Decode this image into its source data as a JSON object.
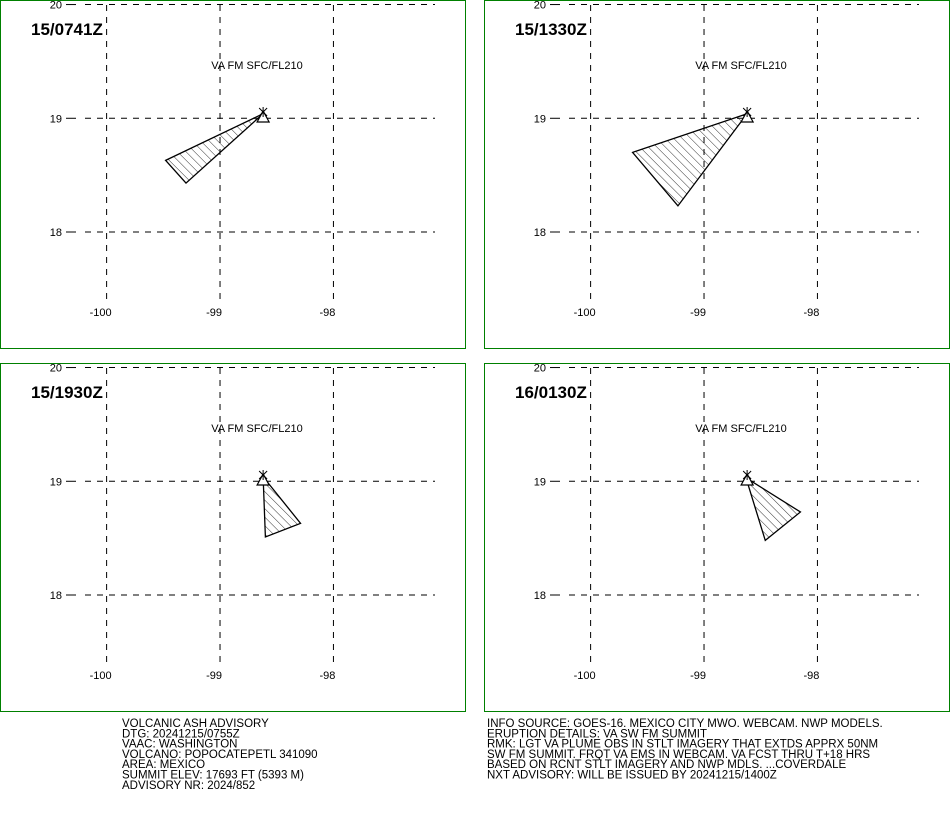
{
  "panels": [
    {
      "time": "15/0741Z",
      "label": "VA FM SFC/FL210",
      "xlim": [
        -100.94,
        -96.84
      ],
      "ylim": [
        16.98,
        20.04
      ],
      "xticks": [
        -100,
        -99,
        -98
      ],
      "yticks": [
        20,
        19,
        18
      ],
      "vent": [
        -98.62,
        19.02
      ],
      "plume": {
        "lon": [
          -98.62,
          -99.48,
          -99.3
        ],
        "lat": [
          19.04,
          18.63,
          18.43
        ]
      }
    },
    {
      "time": "15/1330Z",
      "label": "VA FM SFC/FL210",
      "xlim": [
        -100.94,
        -96.84
      ],
      "ylim": [
        16.98,
        20.04
      ],
      "xticks": [
        -100,
        -99,
        -98
      ],
      "yticks": [
        20,
        19,
        18
      ],
      "vent": [
        -98.62,
        19.02
      ],
      "plume": {
        "lon": [
          -98.62,
          -99.63,
          -99.23
        ],
        "lat": [
          19.04,
          18.7,
          18.23
        ]
      }
    },
    {
      "time": "15/1930Z",
      "label": "VA FM SFC/FL210",
      "xlim": [
        -100.94,
        -96.84
      ],
      "ylim": [
        16.98,
        20.04
      ],
      "xticks": [
        -100,
        -99,
        -98
      ],
      "yticks": [
        20,
        19,
        18
      ],
      "vent": [
        -98.62,
        19.02
      ],
      "plume": {
        "lon": [
          -98.62,
          -98.29,
          -98.6
        ],
        "lat": [
          19.04,
          18.63,
          18.51
        ]
      }
    },
    {
      "time": "16/0130Z",
      "label": "VA FM SFC/FL210",
      "xlim": [
        -100.94,
        -96.84
      ],
      "ylim": [
        16.98,
        20.04
      ],
      "xticks": [
        -100,
        -99,
        -98
      ],
      "yticks": [
        20,
        19,
        18
      ],
      "vent": [
        -98.62,
        19.02
      ],
      "plume": {
        "lon": [
          -98.63,
          -98.15,
          -98.46
        ],
        "lat": [
          19.03,
          18.73,
          18.48
        ]
      }
    }
  ],
  "text_left": [
    "VOLCANIC ASH ADVISORY",
    "DTG: 20241215/0755Z",
    "VAAC: WASHINGTON",
    "VOLCANO: POPOCATEPETL 341090",
    "AREA: MEXICO",
    "SUMMIT ELEV: 17693 FT (5393 M)",
    "ADVISORY NR: 2024/852"
  ],
  "text_right": [
    "INFO SOURCE: GOES-16. MEXICO CITY MWO. WEBCAM. NWP MODELS.",
    "ERUPTION DETAILS: VA SW FM SUMMIT",
    "RMK: LGT VA PLUME OBS IN STLT IMAGERY THAT EXTDS APPRX 50NM",
    "SW FM SUMMIT. FRQT VA EMS IN WEBCAM. VA FCST THRU T+18 HRS",
    "BASED ON RCNT STLT IMAGERY AND NWP MDLS. ...COVERDALE",
    "NXT ADVISORY: WILL BE ISSUED BY 20241215/1400Z"
  ]
}
